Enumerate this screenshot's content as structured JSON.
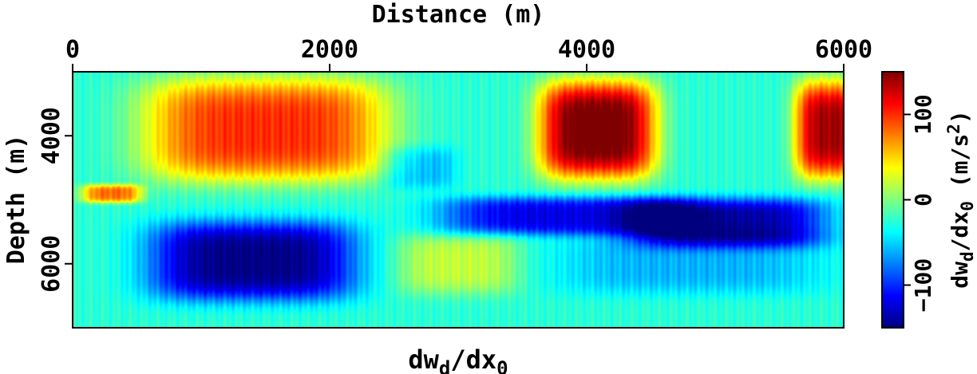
{
  "chart_data": {
    "type": "heatmap",
    "title": "dw_d/dx_0",
    "xlabel": "Distance (m)",
    "ylabel": "Depth (m)",
    "xlim": [
      0,
      6000
    ],
    "ylim": [
      3000,
      7000
    ],
    "x_axis_position": "top",
    "y_axis_inverted": true,
    "xticks": [
      0,
      2000,
      4000,
      6000
    ],
    "yticks": [
      4000,
      6000
    ],
    "colorbar": {
      "label": "dw_d/dx_0 (m/s^2)",
      "range": [
        -150,
        150
      ],
      "ticks": [
        -100,
        0,
        100
      ],
      "colormap": "jet"
    },
    "grid": false,
    "features": [
      {
        "x_center": 1500,
        "y_center": 3900,
        "x_halfwidth": 1000,
        "y_halfwidth": 850,
        "value": 100
      },
      {
        "x_center": 4080,
        "y_center": 3900,
        "x_halfwidth": 480,
        "y_halfwidth": 800,
        "value": 160
      },
      {
        "x_center": 5900,
        "y_center": 3900,
        "x_halfwidth": 300,
        "y_halfwidth": 800,
        "value": 140
      },
      {
        "x_center": 1400,
        "y_center": 5950,
        "x_halfwidth": 850,
        "y_halfwidth": 650,
        "value": -150
      },
      {
        "x_center": 3800,
        "y_center": 5250,
        "x_halfwidth": 1000,
        "y_halfwidth": 320,
        "value": -120
      },
      {
        "x_center": 5100,
        "y_center": 5350,
        "x_halfwidth": 800,
        "y_halfwidth": 400,
        "value": -140
      },
      {
        "x_center": 4800,
        "y_center": 6000,
        "x_halfwidth": 1100,
        "y_halfwidth": 500,
        "value": -60
      },
      {
        "x_center": 3000,
        "y_center": 6000,
        "x_halfwidth": 500,
        "y_halfwidth": 500,
        "value": 20
      },
      {
        "x_center": 300,
        "y_center": 4900,
        "x_halfwidth": 250,
        "y_halfwidth": 150,
        "value": 80
      },
      {
        "x_center": 2700,
        "y_center": 4500,
        "x_halfwidth": 300,
        "y_halfwidth": 350,
        "value": -60
      }
    ],
    "background_value": -25
  }
}
